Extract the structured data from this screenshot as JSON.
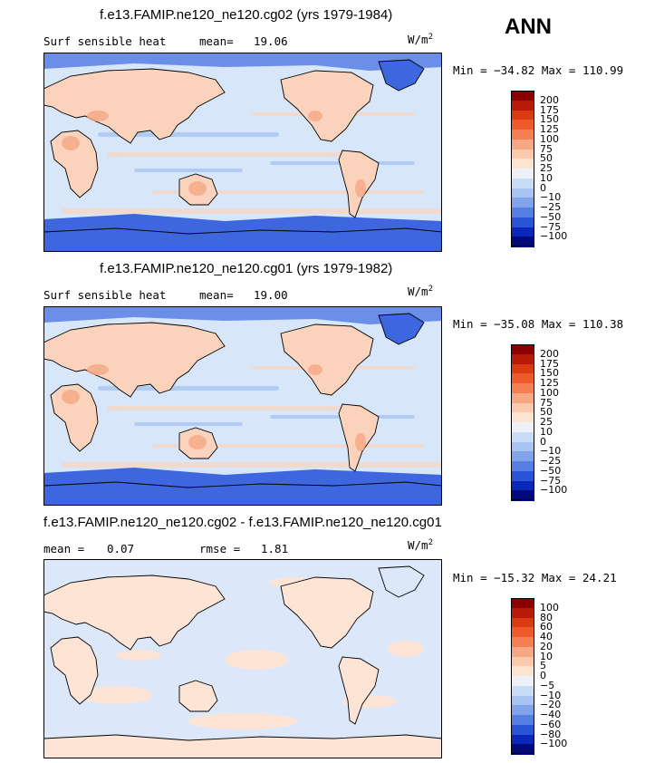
{
  "season": "ANN",
  "panels": [
    {
      "title": "f.e13.FAMIP.ne120_ne120.cg02 (yrs 1979-1984)",
      "variable": "Surf sensible heat",
      "stat1_label": "mean=",
      "stat1_value": "19.06",
      "units_base": "W/m",
      "units_exp": "2",
      "minmax": "Min = −34.82 Max = 110.99",
      "colorbar_labels": [
        "200",
        "175",
        "150",
        "125",
        "100",
        "75",
        "50",
        "25",
        "10",
        "0",
        "−10",
        "−25",
        "−50",
        "−75",
        "−100"
      ],
      "fill_scheme": "full"
    },
    {
      "title": "f.e13.FAMIP.ne120_ne120.cg01 (yrs 1979-1982)",
      "variable": "Surf sensible heat",
      "stat1_label": "mean=",
      "stat1_value": "19.00",
      "units_base": "W/m",
      "units_exp": "2",
      "minmax": "Min = −35.08 Max = 110.38",
      "colorbar_labels": [
        "200",
        "175",
        "150",
        "125",
        "100",
        "75",
        "50",
        "25",
        "10",
        "0",
        "−10",
        "−25",
        "−50",
        "−75",
        "−100"
      ],
      "fill_scheme": "full"
    },
    {
      "title": "f.e13.FAMIP.ne120_ne120.cg02 - f.e13.FAMIP.ne120_ne120.cg01",
      "variable": "",
      "stat1_label": "mean =",
      "stat1_value": "0.07",
      "stat2_label": "rmse =",
      "stat2_value": "1.81",
      "units_base": "W/m",
      "units_exp": "2",
      "minmax": "Min = −15.32 Max = 24.21",
      "colorbar_labels": [
        "100",
        "80",
        "60",
        "40",
        "20",
        "10",
        "5",
        "0",
        "−5",
        "−10",
        "−20",
        "−40",
        "−60",
        "−80",
        "−100"
      ],
      "fill_scheme": "diff"
    }
  ],
  "colorbar_colors": [
    "#8b0000",
    "#b81a0a",
    "#d93a12",
    "#ef5a2a",
    "#f47f55",
    "#f8a783",
    "#fbc9ac",
    "#fde3d2",
    "#eef2f8",
    "#c9dcf6",
    "#a8c4f2",
    "#7fa4ea",
    "#557fe2",
    "#2a53d6",
    "#0a27b8",
    "#000a7a"
  ],
  "map_colors": {
    "ocean": "#d7e6f8",
    "land_warm": "#fbd3bc",
    "land_hot": "#f5a884",
    "cold": "#6b8ee8",
    "very_cold": "#3e66de",
    "diff_pos": "#fde4d4",
    "diff_neg": "#dce8f9"
  }
}
